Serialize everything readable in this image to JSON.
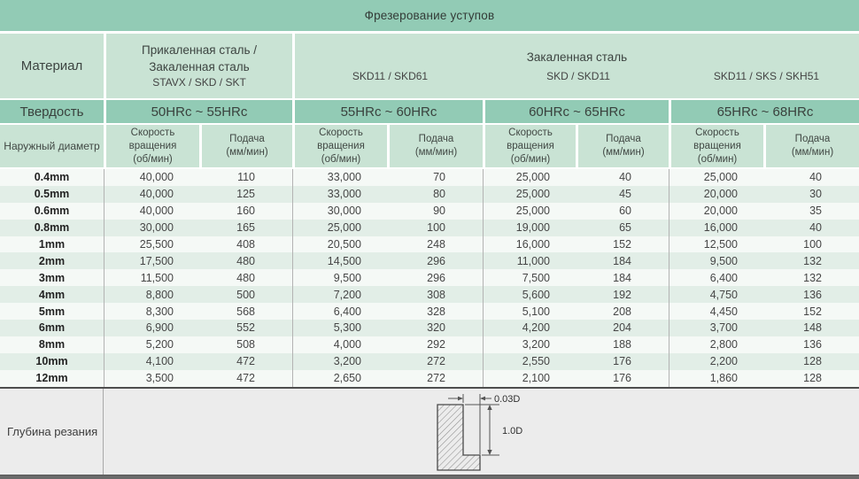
{
  "title": "Фрезерование уступов",
  "header": {
    "material_label": "Материал",
    "group1_line1": "Прикаленная сталь /",
    "group1_line2": "Закаленная сталь",
    "group1_grades": "STAVX / SKD / SKT",
    "merged_title": "Закаленная сталь",
    "merged_grades": [
      "SKD11 / SKD61",
      "SKD / SKD11",
      "SKD11 / SKS / SKH51"
    ],
    "hardness_label": "Твердость",
    "hardness_values": [
      "50HRc ~ 55HRc",
      "55HRc ~ 60HRc",
      "60HRc ~ 65HRc",
      "65HRc ~ 68HRc"
    ],
    "diameter_label": "Наружный диаметр",
    "speed_label": "Скорость вращения",
    "speed_unit": "(об/мин)",
    "feed_label": "Подача",
    "feed_unit": "(мм/мин)"
  },
  "table": {
    "rows": [
      {
        "diameter": "0.4mm",
        "values": [
          "40,000",
          "110",
          "33,000",
          "70",
          "25,000",
          "40",
          "25,000",
          "40"
        ]
      },
      {
        "diameter": "0.5mm",
        "values": [
          "40,000",
          "125",
          "33,000",
          "80",
          "25,000",
          "45",
          "20,000",
          "30"
        ]
      },
      {
        "diameter": "0.6mm",
        "values": [
          "40,000",
          "160",
          "30,000",
          "90",
          "25,000",
          "60",
          "20,000",
          "35"
        ]
      },
      {
        "diameter": "0.8mm",
        "values": [
          "30,000",
          "165",
          "25,000",
          "100",
          "19,000",
          "65",
          "16,000",
          "40"
        ]
      },
      {
        "diameter": "1mm",
        "values": [
          "25,500",
          "408",
          "20,500",
          "248",
          "16,000",
          "152",
          "12,500",
          "100"
        ]
      },
      {
        "diameter": "2mm",
        "values": [
          "17,500",
          "480",
          "14,500",
          "296",
          "11,000",
          "184",
          "9,500",
          "132"
        ]
      },
      {
        "diameter": "3mm",
        "values": [
          "11,500",
          "480",
          "9,500",
          "296",
          "7,500",
          "184",
          "6,400",
          "132"
        ]
      },
      {
        "diameter": "4mm",
        "values": [
          "8,800",
          "500",
          "7,200",
          "308",
          "5,600",
          "192",
          "4,750",
          "136"
        ]
      },
      {
        "diameter": "5mm",
        "values": [
          "8,300",
          "568",
          "6,400",
          "328",
          "5,100",
          "208",
          "4,450",
          "152"
        ]
      },
      {
        "diameter": "6mm",
        "values": [
          "6,900",
          "552",
          "5,300",
          "320",
          "4,200",
          "204",
          "3,700",
          "148"
        ]
      },
      {
        "diameter": "8mm",
        "values": [
          "5,200",
          "508",
          "4,000",
          "292",
          "3,200",
          "188",
          "2,800",
          "136"
        ]
      },
      {
        "diameter": "10mm",
        "values": [
          "4,100",
          "472",
          "3,200",
          "272",
          "2,550",
          "176",
          "2,200",
          "128"
        ]
      },
      {
        "diameter": "12mm",
        "values": [
          "3,500",
          "472",
          "2,650",
          "272",
          "2,100",
          "176",
          "1,860",
          "128"
        ]
      }
    ]
  },
  "footer": {
    "label": "Глубина резания",
    "dim_width": "0.03D",
    "dim_depth": "1.0D"
  },
  "colors": {
    "green_medium": "#92cbb5",
    "green_light": "#c9e3d4",
    "row_plain": "#f5f9f6",
    "row_tint": "#e2eee7",
    "footer_bg": "#ececec",
    "bottom_bar": "#6a6a6a"
  }
}
